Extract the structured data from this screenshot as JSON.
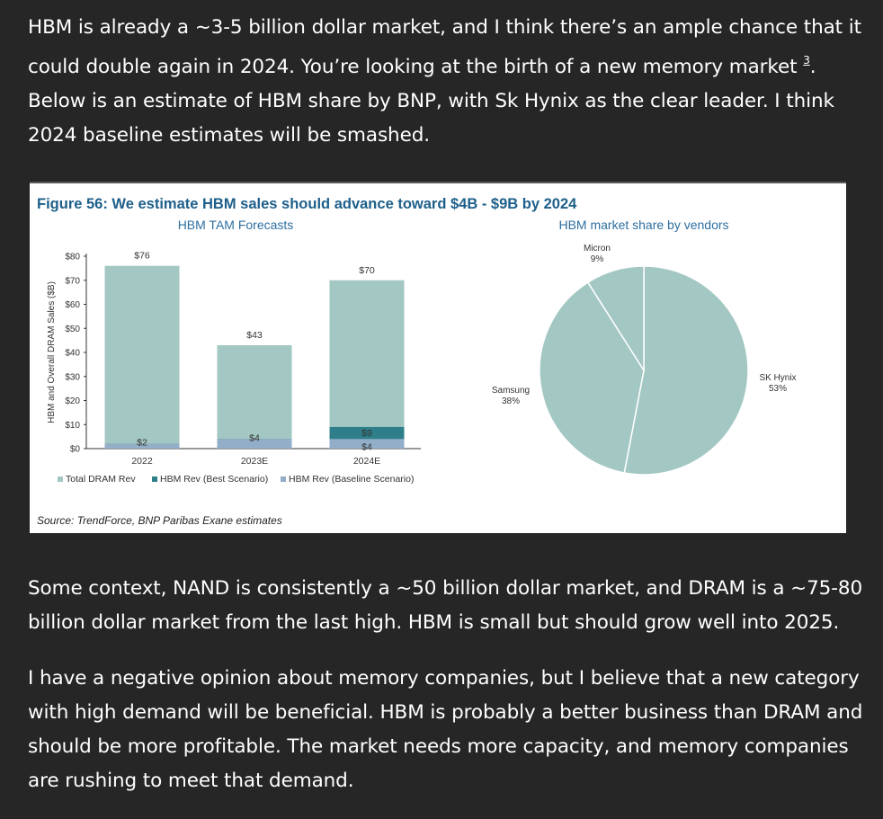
{
  "article": {
    "p1": "HBM is already a ~3-5 billion dollar market, and I think there’s an ample chance that it could double again in 2024. You’re looking at the birth of a new memory market",
    "p1_footnote": "3",
    "p1_end": ". Below is an estimate of HBM share by BNP, with Sk Hynix as the clear leader. I think 2024 baseline estimates will be smashed.",
    "p2": "Some context, NAND is consistently a ~50 billion dollar market, and DRAM is a ~75-80 billion dollar market from the last high. HBM is small but should grow well into 2025.",
    "p3": "I have a negative opinion about memory companies, but I believe that a new category with high demand will be beneficial. HBM is probably a better business than DRAM and should be more profitable. The market needs more capacity, and memory companies are rushing to meet that demand."
  },
  "figure": {
    "title": "Figure 56: We estimate HBM sales should advance toward $4B - $9B by 2024",
    "source": "Source:  TrendForce, BNP Paribas Exane estimates"
  },
  "colors": {
    "total": "#a3c7c2",
    "best": "#2f7f8a",
    "baseline": "#93aec8",
    "title": "#1d5f8a",
    "subtitle": "#2e6fa0"
  },
  "chart_data": [
    {
      "type": "bar",
      "title": "HBM TAM Forecasts",
      "ylabel": "HBM and Overall DRAM Sales ($B)",
      "ylim": [
        0,
        80
      ],
      "yticks": [
        "$0",
        "$10",
        "$20",
        "$30",
        "$40",
        "$50",
        "$60",
        "$70",
        "$80"
      ],
      "categories": [
        "2022",
        "2023E",
        "2024E"
      ],
      "series": [
        {
          "name": "Total DRAM Rev",
          "values": [
            76,
            43,
            70
          ],
          "labels": [
            "$76",
            "$43",
            "$70"
          ]
        },
        {
          "name": "HBM Rev (Best Scenario)",
          "values": [
            2,
            4,
            9
          ],
          "labels": [
            "",
            "",
            "$9"
          ]
        },
        {
          "name": "HBM Rev (Baseline Scenario)",
          "values": [
            2,
            4,
            4
          ],
          "labels": [
            "$2",
            "$4",
            "$4"
          ]
        }
      ],
      "legend": "bottom"
    },
    {
      "type": "pie",
      "title": "HBM market share by vendors",
      "slices": [
        {
          "name": "SK Hynix",
          "value": 53,
          "label": "53%"
        },
        {
          "name": "Samsung",
          "value": 38,
          "label": "38%"
        },
        {
          "name": "Micron",
          "value": 9,
          "label": "9%"
        }
      ]
    }
  ]
}
